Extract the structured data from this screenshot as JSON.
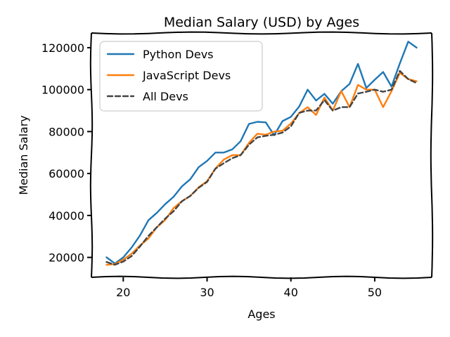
{
  "chart_data": {
    "type": "line",
    "title": "Median Salary (USD) by Ages",
    "xlabel": "Ages",
    "ylabel": "Median Salary",
    "xlim": [
      16.2,
      56.8
    ],
    "ylim": [
      10500,
      127000
    ],
    "xticks": [
      20,
      30,
      40,
      50
    ],
    "yticks": [
      20000,
      40000,
      60000,
      80000,
      100000,
      120000
    ],
    "x": [
      18,
      19,
      20,
      21,
      22,
      23,
      24,
      25,
      26,
      27,
      28,
      29,
      30,
      31,
      32,
      33,
      34,
      35,
      36,
      37,
      38,
      39,
      40,
      41,
      42,
      43,
      44,
      45,
      46,
      47,
      48,
      49,
      50,
      51,
      52,
      53,
      54,
      55
    ],
    "series": [
      {
        "name": "Python Devs",
        "color": "#1f77b4",
        "dash": "solid",
        "values": [
          20046,
          17100,
          20000,
          24744,
          30500,
          37732,
          41247,
          45372,
          48876,
          53850,
          57287,
          63016,
          65998,
          70003,
          70000,
          71496,
          75370,
          83640,
          84666,
          84392,
          78254,
          85000,
          87038,
          91991,
          100000,
          94796,
          97962,
          93302,
          99240,
          102736,
          112285,
          100771,
          104708,
          108423,
          101407,
          112542,
          122870,
          120000
        ]
      },
      {
        "name": "JavaScript Devs",
        "color": "#ff7f0e",
        "dash": "solid",
        "values": [
          16446,
          16791,
          18942,
          21780,
          25704,
          29000,
          34372,
          37810,
          43515,
          46823,
          49293,
          53437,
          56373,
          62375,
          66674,
          68745,
          68746,
          74583,
          79000,
          78508,
          79996,
          80403,
          83820,
          88833,
          91660,
          87892,
          96243,
          90000,
          99313,
          91660,
          102264,
          100000,
          100000,
          91660,
          99240,
          108000,
          105000,
          104000
        ]
      },
      {
        "name": "All Devs",
        "color": "#444444",
        "dash": "dashed",
        "values": [
          17784,
          16500,
          18012,
          20628,
          25206,
          30252,
          34368,
          38496,
          42000,
          46752,
          49320,
          53200,
          56000,
          62316,
          64928,
          67317,
          68748,
          73752,
          77232,
          78000,
          78508,
          79536,
          82488,
          88935,
          90000,
          90056,
          95000,
          90000,
          91633,
          91660,
          98150,
          98964,
          100000,
          98988,
          100000,
          108923,
          105000,
          103117
        ]
      }
    ],
    "legend": {
      "position": "top-left"
    },
    "grid": false,
    "style": "xkcd"
  }
}
